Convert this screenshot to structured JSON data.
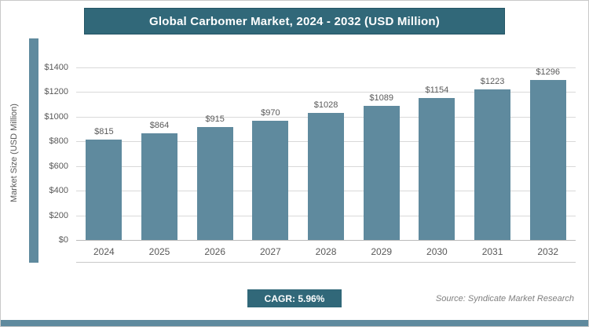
{
  "title": "Global Carbomer Market, 2024 - 2032 (USD Million)",
  "colors": {
    "bar": "#5f8a9e",
    "accent_strip": "#5f8a9e",
    "title_bg": "#316879",
    "badge_bg": "#316879",
    "grid": "#d9d9d9",
    "text": "#595959"
  },
  "chart_data": {
    "type": "bar",
    "title": "Global Carbomer Market, 2024 - 2032 (USD Million)",
    "categories": [
      "2024",
      "2025",
      "2026",
      "2027",
      "2028",
      "2029",
      "2030",
      "2031",
      "2032"
    ],
    "values": [
      815,
      864,
      915,
      970,
      1028,
      1089,
      1154,
      1223,
      1296
    ],
    "value_labels": [
      "$815",
      "$864",
      "$915",
      "$970",
      "$1028",
      "$1089",
      "$1154",
      "$1223",
      "$1296"
    ],
    "xlabel": "",
    "ylabel": "Market Size (USD Million)",
    "ylim": [
      0,
      1400
    ],
    "ytick_step": 200,
    "ytick_labels": [
      "$0",
      "$200",
      "$400",
      "$600",
      "$800",
      "$1000",
      "$1200",
      "$1400"
    ],
    "grid": true,
    "legend": false
  },
  "footer": {
    "cagr_label": "CAGR: 5.96%",
    "source": "Source: Syndicate Market Research"
  }
}
